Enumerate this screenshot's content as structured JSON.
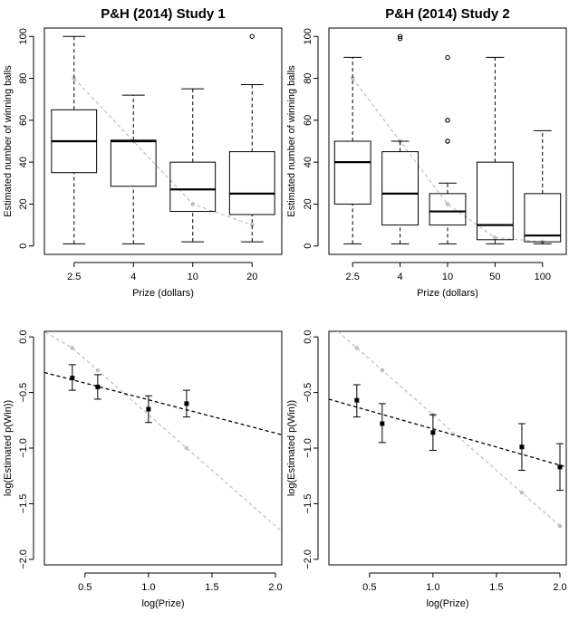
{
  "chart_data": [
    {
      "type": "boxplot",
      "title": "P&H (2014) Study 1",
      "xlabel": "Prize (dollars)",
      "ylabel": "Estimated number of winning balls",
      "categories": [
        "2.5",
        "4",
        "10",
        "20"
      ],
      "ylim": [
        0,
        100
      ],
      "yticks": [
        0,
        20,
        40,
        60,
        80,
        100
      ],
      "boxes": [
        {
          "min": 1,
          "q1": 35,
          "median": 50,
          "q3": 65,
          "max": 100,
          "outliers": []
        },
        {
          "min": 1,
          "q1": 28.5,
          "median": 50,
          "q3": 50.5,
          "max": 72,
          "outliers": []
        },
        {
          "min": 2,
          "q1": 16.5,
          "median": 27,
          "q3": 40,
          "max": 75,
          "outliers": []
        },
        {
          "min": 2,
          "q1": 15,
          "median": 25,
          "q3": 45,
          "max": 77,
          "outliers": [
            100
          ]
        }
      ],
      "reference_line": {
        "color": "#c0c0c0",
        "values": [
          80,
          50,
          20,
          10
        ]
      }
    },
    {
      "type": "boxplot",
      "title": "P&H (2014) Study 2",
      "xlabel": "Prize (dollars)",
      "ylabel": "Estimated number of winning balls",
      "categories": [
        "2.5",
        "4",
        "10",
        "50",
        "100"
      ],
      "ylim": [
        0,
        100
      ],
      "yticks": [
        0,
        20,
        40,
        60,
        80,
        100
      ],
      "boxes": [
        {
          "min": 1,
          "q1": 20,
          "median": 40,
          "q3": 50,
          "max": 90,
          "outliers": []
        },
        {
          "min": 1,
          "q1": 10,
          "median": 25,
          "q3": 45,
          "max": 50,
          "outliers": [
            99,
            100
          ]
        },
        {
          "min": 1,
          "q1": 10,
          "median": 16.5,
          "q3": 25,
          "max": 30,
          "outliers": [
            50,
            50,
            60,
            60,
            90
          ]
        },
        {
          "min": 1,
          "q1": 3,
          "median": 10,
          "q3": 40,
          "max": 90,
          "outliers": []
        },
        {
          "min": 1,
          "q1": 2,
          "median": 5,
          "q3": 25,
          "max": 55,
          "outliers": []
        }
      ],
      "reference_line": {
        "color": "#c0c0c0",
        "values": [
          80,
          50,
          20,
          4,
          2
        ]
      }
    },
    {
      "type": "scatter",
      "xlabel": "log(Prize)",
      "ylabel": "log(Estimated p(Win))",
      "xlim": [
        0.18,
        2.05
      ],
      "ylim": [
        -2.05,
        0.05
      ],
      "xticks": [
        0.5,
        1.0,
        1.5,
        2.0
      ],
      "xtick_labels": [
        "0.5",
        "1.0",
        "1.5",
        "2.0"
      ],
      "yticks": [
        0.0,
        -0.5,
        -1.0,
        -1.5,
        -2.0
      ],
      "ytick_labels": [
        "0.0",
        "−0.5",
        "−1.0",
        "−1.5",
        "−2.0"
      ],
      "points": [
        {
          "x": 0.4,
          "y": -0.37,
          "lo": -0.48,
          "hi": -0.25
        },
        {
          "x": 0.6,
          "y": -0.45,
          "lo": -0.56,
          "hi": -0.34
        },
        {
          "x": 1.0,
          "y": -0.65,
          "lo": -0.77,
          "hi": -0.53
        },
        {
          "x": 1.3,
          "y": -0.6,
          "lo": -0.72,
          "hi": -0.48
        }
      ],
      "fit_line": {
        "x": [
          0.18,
          2.05
        ],
        "y": [
          -0.32,
          -0.88
        ]
      },
      "reference_line": {
        "color": "#c0c0c0",
        "x": [
          0.1,
          0.4,
          0.6,
          1.3,
          2.05
        ],
        "y": [
          0.1,
          -0.1,
          -0.3,
          -1.0,
          -1.75
        ]
      }
    },
    {
      "type": "scatter",
      "xlabel": "log(Prize)",
      "ylabel": "log(Estimated p(Win))",
      "xlim": [
        0.18,
        2.05
      ],
      "ylim": [
        -2.05,
        0.05
      ],
      "xticks": [
        0.5,
        1.0,
        1.5,
        2.0
      ],
      "xtick_labels": [
        "0.5",
        "1.0",
        "1.5",
        "2.0"
      ],
      "yticks": [
        0.0,
        -0.5,
        -1.0,
        -1.5,
        -2.0
      ],
      "ytick_labels": [
        "0.0",
        "−0.5",
        "−1.0",
        "−1.5",
        "−2.0"
      ],
      "points": [
        {
          "x": 0.4,
          "y": -0.57,
          "lo": -0.72,
          "hi": -0.43
        },
        {
          "x": 0.6,
          "y": -0.78,
          "lo": -0.95,
          "hi": -0.6
        },
        {
          "x": 1.0,
          "y": -0.86,
          "lo": -1.02,
          "hi": -0.7
        },
        {
          "x": 1.7,
          "y": -0.99,
          "lo": -1.2,
          "hi": -0.78
        },
        {
          "x": 2.0,
          "y": -1.17,
          "lo": -1.38,
          "hi": -0.96
        }
      ],
      "fit_line": {
        "x": [
          0.18,
          2.05
        ],
        "y": [
          -0.56,
          -1.17
        ]
      },
      "reference_line": {
        "color": "#c0c0c0",
        "x": [
          0.1,
          0.4,
          0.6,
          1.0,
          1.7,
          2.0
        ],
        "y": [
          0.2,
          -0.1,
          -0.3,
          -0.7,
          -1.4,
          -1.7
        ]
      }
    }
  ]
}
